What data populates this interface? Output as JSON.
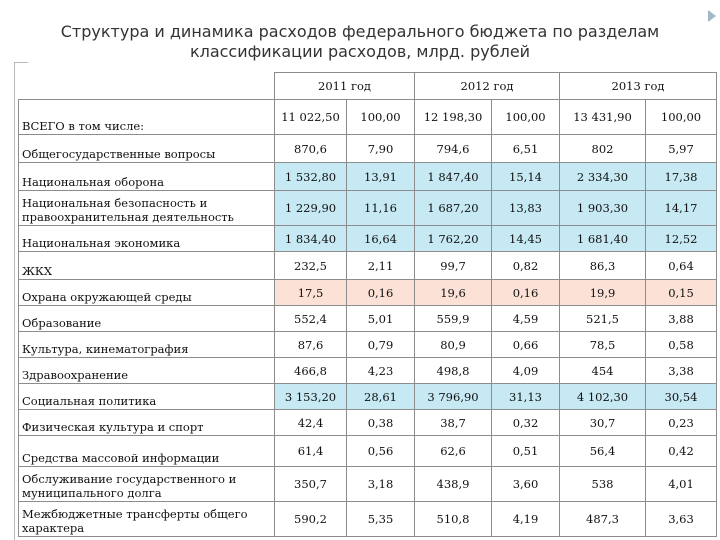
{
  "title_line1": "Структура и динамика расходов федерального бюджета по разделам",
  "title_line2": "классификации расходов, млрд. рублей",
  "years": [
    "2011 год",
    "2012 год",
    "2013 год"
  ],
  "colors": {
    "highlight_blue": "#c6e9f4",
    "highlight_pink": "#fbe1d6",
    "border": "#8c8c8c"
  },
  "rows": [
    {
      "label": "ВСЕГО в том числе:",
      "values": [
        "11 022,50",
        "100,00",
        "12 198,30",
        "100,00",
        "13 431,90",
        "100,00"
      ],
      "highlight": ""
    },
    {
      "label": "Общегосударственные вопросы",
      "values": [
        "870,6",
        "7,90",
        "794,6",
        "6,51",
        "802",
        "5,97"
      ],
      "highlight": ""
    },
    {
      "label": "Национальная оборона",
      "values": [
        "1 532,80",
        "13,91",
        "1 847,40",
        "15,14",
        "2 334,30",
        "17,38"
      ],
      "highlight": "blue"
    },
    {
      "label": "Национальная безопасность и правоохранительная деятельность",
      "values": [
        "1 229,90",
        "11,16",
        "1 687,20",
        "13,83",
        "1 903,30",
        "14,17"
      ],
      "highlight": "blue"
    },
    {
      "label": "Национальная экономика",
      "values": [
        "1 834,40",
        "16,64",
        "1 762,20",
        "14,45",
        "1 681,40",
        "12,52"
      ],
      "highlight": "blue"
    },
    {
      "label": "ЖКХ",
      "values": [
        "232,5",
        "2,11",
        "99,7",
        "0,82",
        "86,3",
        "0,64"
      ],
      "highlight": ""
    },
    {
      "label": "Охрана окружающей среды",
      "values": [
        "17,5",
        "0,16",
        "19,6",
        "0,16",
        "19,9",
        "0,15"
      ],
      "highlight": "pink"
    },
    {
      "label": "Образование",
      "values": [
        "552,4",
        "5,01",
        "559,9",
        "4,59",
        "521,5",
        "3,88"
      ],
      "highlight": ""
    },
    {
      "label": "Культура, кинематография",
      "values": [
        "87,6",
        "0,79",
        "80,9",
        "0,66",
        "78,5",
        "0,58"
      ],
      "highlight": ""
    },
    {
      "label": "Здравоохранение",
      "values": [
        "466,8",
        "4,23",
        "498,8",
        "4,09",
        "454",
        "3,38"
      ],
      "highlight": ""
    },
    {
      "label": "Социальная политика",
      "values": [
        "3 153,20",
        "28,61",
        "3 796,90",
        "31,13",
        "4 102,30",
        "30,54"
      ],
      "highlight": "blue"
    },
    {
      "label": "Физическая культура и спорт",
      "values": [
        "42,4",
        "0,38",
        "38,7",
        "0,32",
        "30,7",
        "0,23"
      ],
      "highlight": ""
    },
    {
      "label": "Средства массовой информации",
      "values": [
        "61,4",
        "0,56",
        "62,6",
        "0,51",
        "56,4",
        "0,42"
      ],
      "highlight": ""
    },
    {
      "label": "Обслуживание государственного и муниципального долга",
      "values": [
        "350,7",
        "3,18",
        "438,9",
        "3,60",
        "538",
        "4,01"
      ],
      "highlight": ""
    },
    {
      "label": "Межбюджетные трансферты общего характера",
      "values": [
        "590,2",
        "5,35",
        "510,8",
        "4,19",
        "487,3",
        "3,63"
      ],
      "highlight": ""
    }
  ]
}
